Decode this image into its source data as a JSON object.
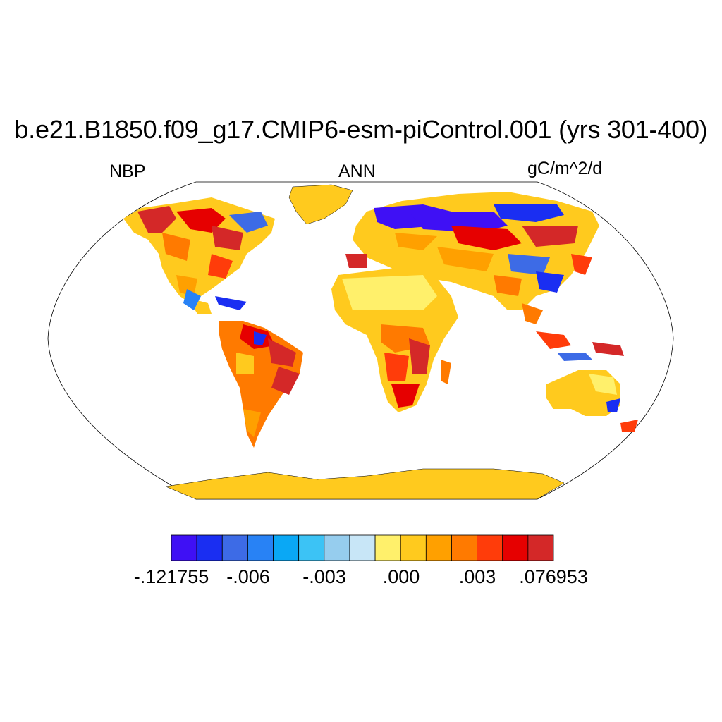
{
  "title": "b.e21.B1850.f09_g17.CMIP6-esm-piControl.001 (yrs 301-400)",
  "left_label": "NBP",
  "center_label": "ANN",
  "right_label": "gC/m^2/d",
  "colorbar": {
    "colors": [
      "#3f10f5",
      "#1a2ef2",
      "#3d6be6",
      "#2882f5",
      "#0aa8f5",
      "#3cc3f5",
      "#96cdee",
      "#c8e6f7",
      "#fff06b",
      "#ffca1e",
      "#ffa000",
      "#ff7a00",
      "#ff3c0a",
      "#e60000",
      "#d42828"
    ],
    "tick_labels": [
      "-.121755",
      "-.006",
      "-.003",
      ".000",
      ".003",
      ".076953"
    ]
  },
  "legend_items": [
    {
      "label": "-.121755"
    },
    {
      "label": "-.006"
    },
    {
      "label": "-.003"
    },
    {
      "label": ".000"
    },
    {
      "label": ".003"
    },
    {
      "label": ".076953"
    }
  ]
}
